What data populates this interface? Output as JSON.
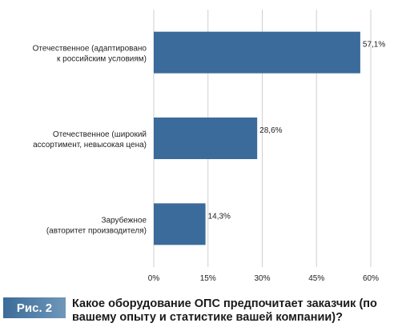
{
  "chart_data": {
    "type": "bar",
    "orientation": "horizontal",
    "categories": [
      [
        "Отечественное (адаптировано",
        "к российским условиям)"
      ],
      [
        "Отечественное (широкий",
        "ассортимент, невысокая цена)"
      ],
      [
        "Зарубежное",
        "(авторитет производителя)"
      ]
    ],
    "values": [
      57.1,
      28.6,
      14.3
    ],
    "value_labels": [
      "57,1%",
      "28,6%",
      "14,3%"
    ],
    "xlim": [
      0,
      60
    ],
    "ticks": [
      0,
      15,
      30,
      45,
      60
    ],
    "tick_labels": [
      "0%",
      "15%",
      "30%",
      "45%",
      "60%"
    ],
    "grid": true,
    "bar_color": "#3a6b9a",
    "grid_color": "#cfcfcf",
    "title": "Какое оборудование ОПС предпочитает заказчик (по вашему опыту и статистике вашей компании)?"
  },
  "caption": {
    "figure_label": "Рис. 2",
    "text": "Какое оборудование ОПС предпочитает заказчик (по вашему опыту и статистике вашей компании)?"
  }
}
